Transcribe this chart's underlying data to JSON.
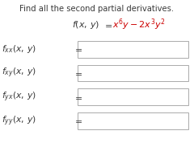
{
  "title": "Find all the second partial derivatives.",
  "background_color": "#ffffff",
  "text_color": "#3a3a3a",
  "red_color": "#cc0000",
  "rows": [
    {
      "sub": "xx"
    },
    {
      "sub": "xy"
    },
    {
      "sub": "yx"
    },
    {
      "sub": "yy"
    }
  ],
  "title_fontsize": 7.2,
  "formula_fontsize": 8.0,
  "label_fontsize": 7.8,
  "fig_width": 2.4,
  "fig_height": 1.78,
  "dpi": 100
}
